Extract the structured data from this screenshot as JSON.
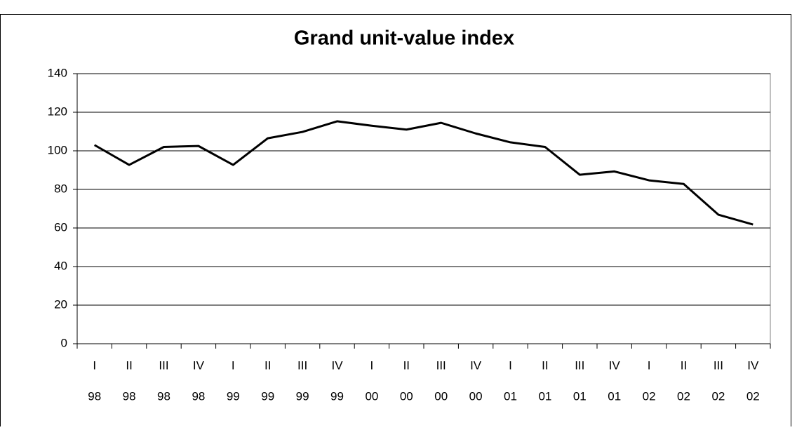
{
  "chart_data": {
    "type": "line",
    "title": "Grand unit-value index",
    "categories": [
      [
        "I",
        "98"
      ],
      [
        "II",
        "98"
      ],
      [
        "III",
        "98"
      ],
      [
        "IV",
        "98"
      ],
      [
        "I",
        "99"
      ],
      [
        "II",
        "99"
      ],
      [
        "III",
        "99"
      ],
      [
        "IV",
        "99"
      ],
      [
        "I",
        "00"
      ],
      [
        "II",
        "00"
      ],
      [
        "III",
        "00"
      ],
      [
        "IV",
        "00"
      ],
      [
        "I",
        "01"
      ],
      [
        "II",
        "01"
      ],
      [
        "III",
        "01"
      ],
      [
        "IV",
        "01"
      ],
      [
        "I",
        "02"
      ],
      [
        "II",
        "02"
      ],
      [
        "III",
        "02"
      ],
      [
        "IV",
        "02"
      ]
    ],
    "values": [
      103,
      92.7,
      102,
      102.5,
      92.7,
      106.5,
      109.8,
      115.3,
      113,
      111,
      114.5,
      109,
      104.4,
      102,
      87.6,
      89.3,
      84.7,
      82.8,
      66.9,
      61.8
    ],
    "color": "#000000",
    "ylim": [
      0,
      140
    ],
    "yticks": [
      0,
      20,
      40,
      60,
      80,
      100,
      120,
      140
    ],
    "grid": true
  }
}
